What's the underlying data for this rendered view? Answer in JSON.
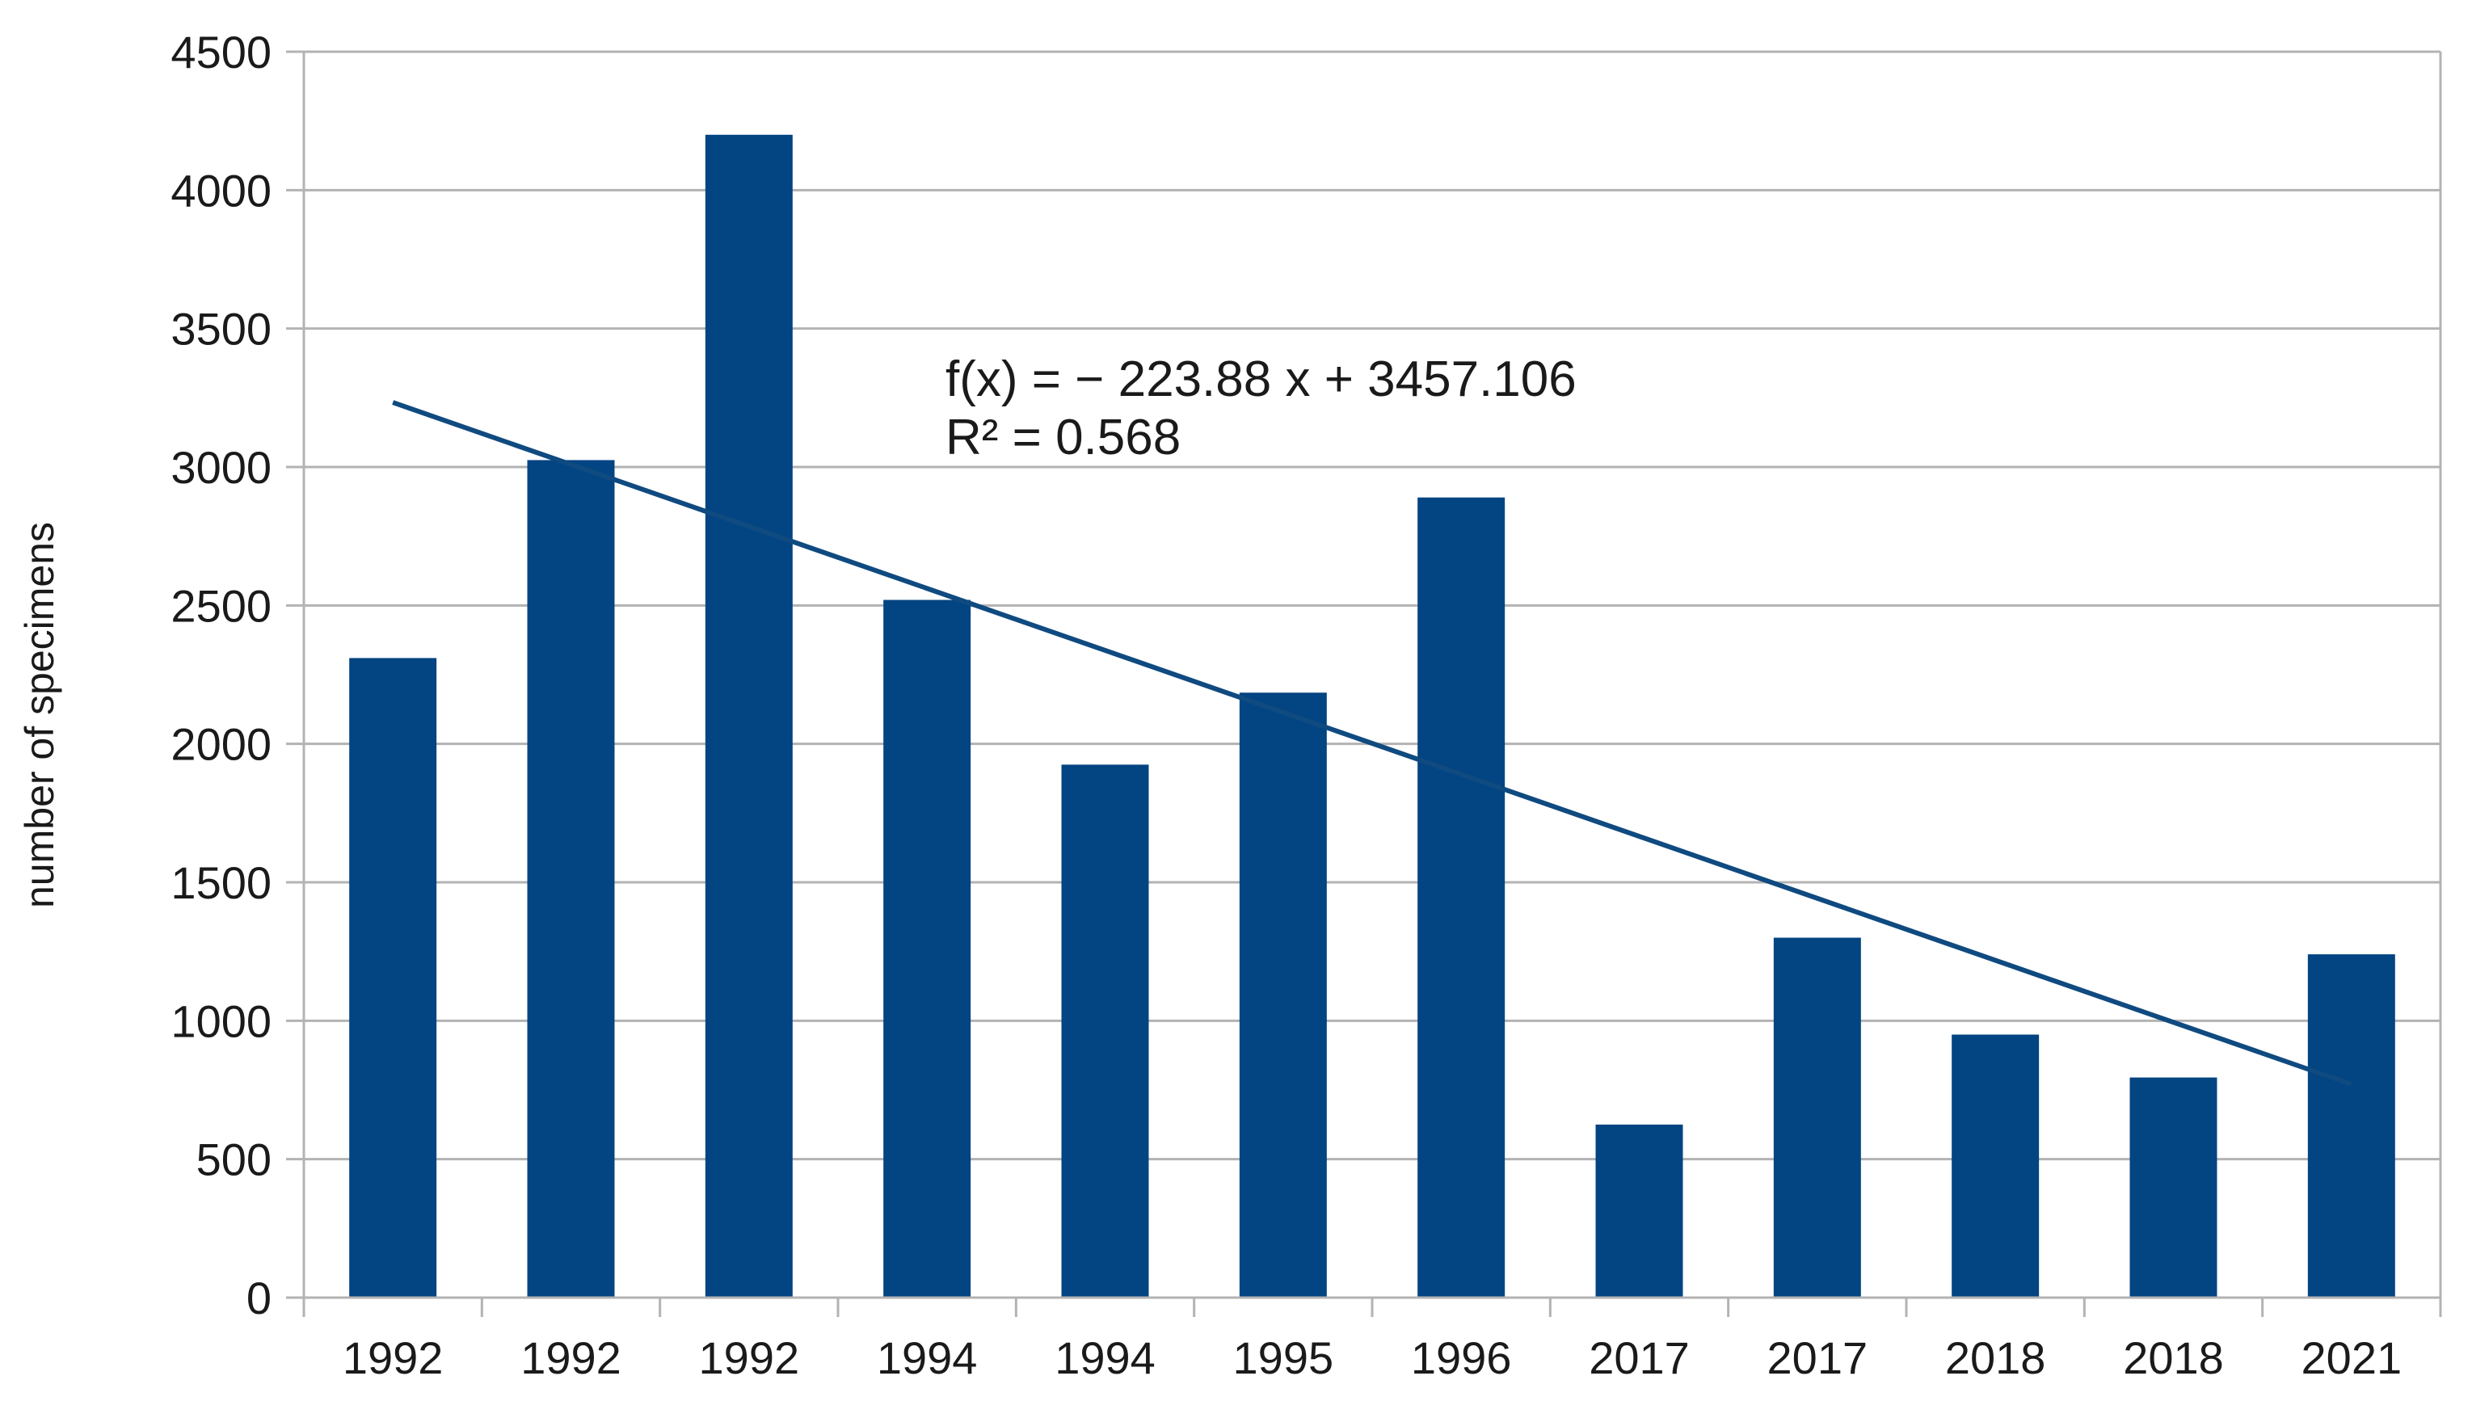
{
  "chart_data": {
    "type": "bar",
    "title": "",
    "xlabel": "",
    "ylabel": "number of specimens",
    "ylim": [
      0,
      4500
    ],
    "yticks": [
      0,
      500,
      1000,
      1500,
      2000,
      2500,
      3000,
      3500,
      4000,
      4500
    ],
    "grid": true,
    "categories": [
      "1992",
      "1992",
      "1992",
      "1994",
      "1994",
      "1995",
      "1996",
      "2017",
      "2017",
      "2018",
      "2018",
      "2021"
    ],
    "series": [
      {
        "name": "number of specimens",
        "values": [
          2310,
          3025,
          4200,
          2520,
          1925,
          2185,
          2890,
          625,
          1300,
          950,
          795,
          1240
        ]
      }
    ],
    "trendline": {
      "type": "linear",
      "slope": -223.88,
      "intercept": 3457.106,
      "equation_label": "f(x) = − 223.88 x + 3457.106",
      "r2_label": "R² = 0.568"
    },
    "colors": {
      "bar": "#034482",
      "trendline": "#0f4a80",
      "grid": "#b3b3b3",
      "axis": "#b3b3b3"
    }
  }
}
